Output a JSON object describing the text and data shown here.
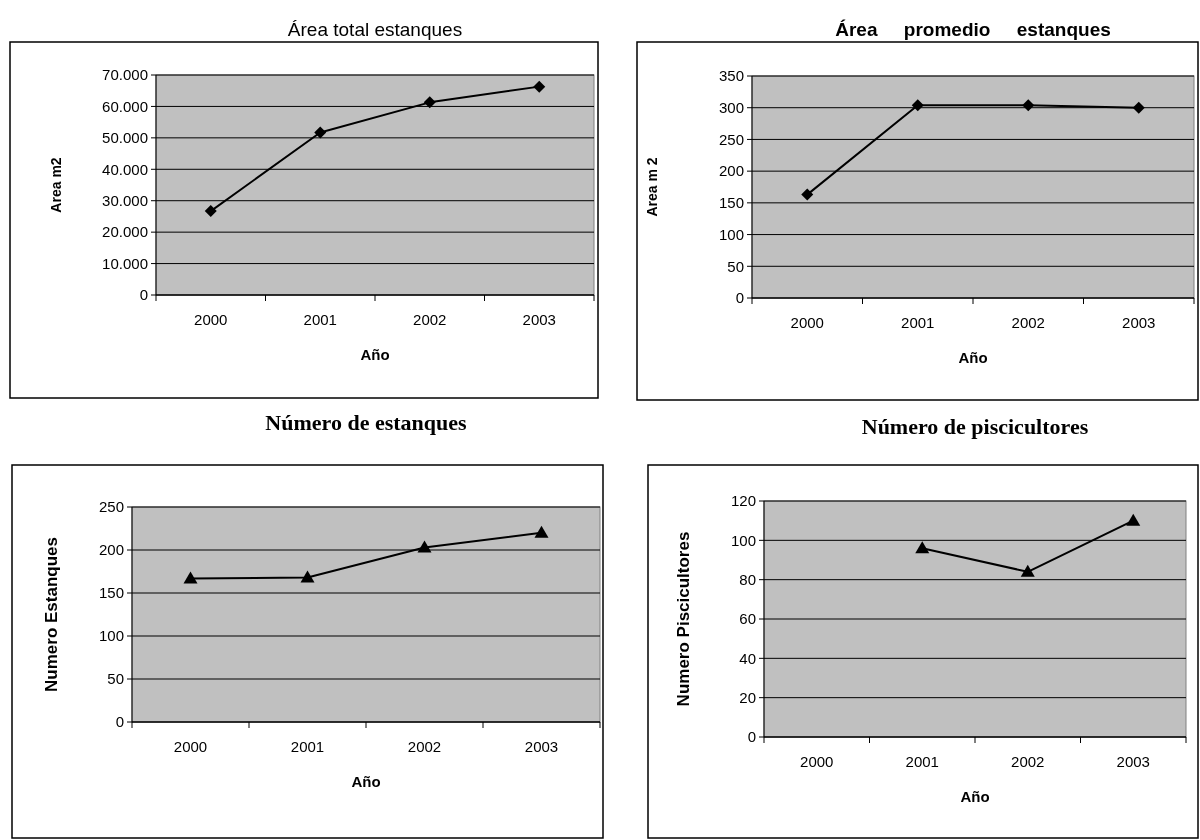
{
  "chart_data": [
    {
      "type": "line",
      "title": "Área total estanques",
      "xlabel": "Año",
      "ylabel": "Area m2",
      "categories": [
        "2000",
        "2001",
        "2002",
        "2003"
      ],
      "series": [
        {
          "color": "#000000",
          "values": [
            26700,
            51700,
            61300,
            66300
          ]
        }
      ],
      "ylim": [
        0,
        70000
      ],
      "yticks": [
        0,
        {
          "value": 10000,
          "label": "10.000"
        },
        {
          "value": 20000,
          "label": "20.000"
        },
        {
          "value": 30000,
          "label": "30.000"
        },
        {
          "value": 40000,
          "label": "40.000"
        },
        {
          "value": 50000,
          "label": "50.000"
        },
        {
          "value": 60000,
          "label": "60.000"
        },
        {
          "value": 70000,
          "label": "70.000"
        }
      ],
      "grid": "y",
      "marker": "diamond"
    },
    {
      "type": "line",
      "title": "Área     promedio     estanques",
      "xlabel": "Año",
      "ylabel": "Area m 2",
      "categories": [
        "2000",
        "2001",
        "2002",
        "2003"
      ],
      "series": [
        {
          "color": "#000000",
          "values": [
            163,
            304,
            304,
            300
          ]
        }
      ],
      "ylim": [
        0,
        350
      ],
      "yticks": [
        0,
        50,
        100,
        150,
        200,
        250,
        300,
        350
      ],
      "grid": "y",
      "marker": "diamond"
    },
    {
      "type": "line",
      "title": "Número de estanques",
      "xlabel": "Año",
      "ylabel": "Numero Estanques",
      "categories": [
        "2000",
        "2001",
        "2002",
        "2003"
      ],
      "series": [
        {
          "color": "#000000",
          "values": [
            167,
            168,
            203,
            220
          ]
        }
      ],
      "ylim": [
        0,
        250
      ],
      "yticks": [
        0,
        50,
        100,
        150,
        200,
        250
      ],
      "grid": "y",
      "marker": "triangle"
    },
    {
      "type": "line",
      "title": "Número de piscicultores",
      "xlabel": "Año",
      "ylabel": "Numero Piscicultores",
      "categories": [
        "2000",
        "2001",
        "2002",
        "2003"
      ],
      "series": [
        {
          "color": "#000000",
          "values": [
            null,
            96,
            84,
            110
          ]
        }
      ],
      "ylim": [
        0,
        120
      ],
      "yticks": [
        0,
        20,
        40,
        60,
        80,
        100,
        120
      ],
      "grid": "y",
      "marker": "triangle"
    }
  ]
}
